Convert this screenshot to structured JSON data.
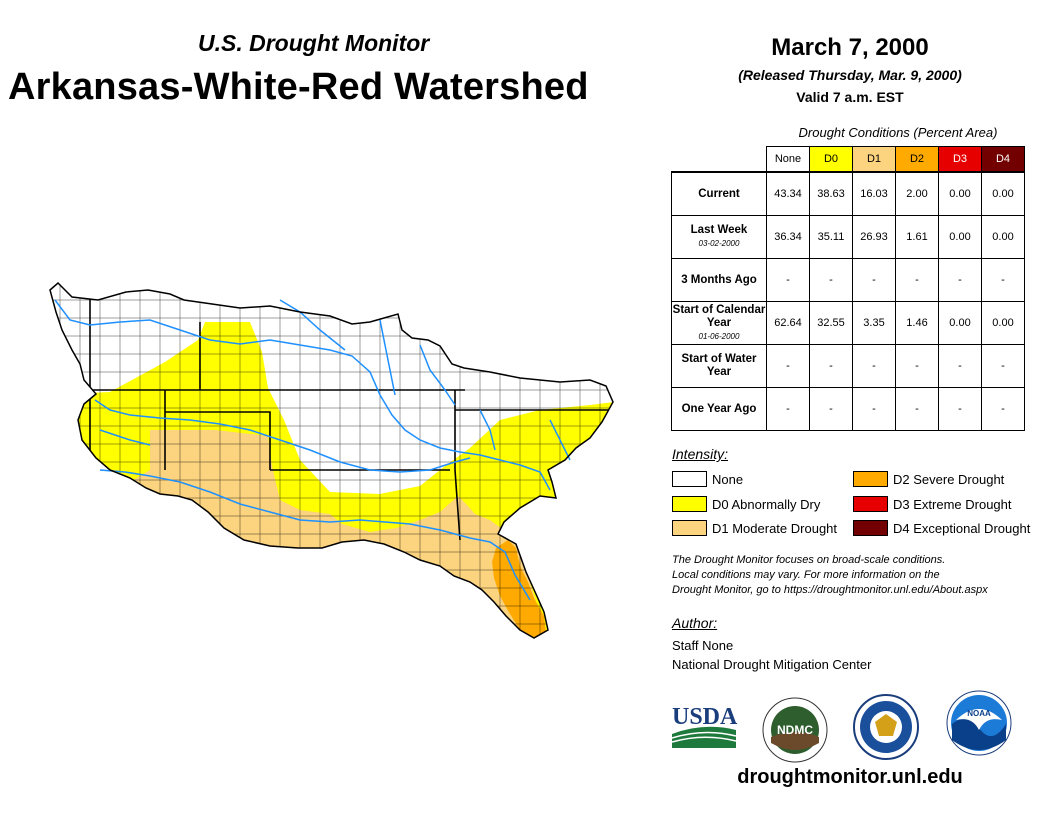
{
  "header": {
    "subtitle": "U.S. Drought Monitor",
    "title": "Arkansas-White-Red Watershed",
    "date": "March 7, 2000",
    "released": "(Released Thursday, Mar. 9, 2000)",
    "valid": "Valid 7 a.m. EST"
  },
  "table": {
    "caption": "Drought Conditions (Percent Area)",
    "columns": [
      "None",
      "D0",
      "D1",
      "D2",
      "D3",
      "D4"
    ],
    "column_colors": [
      "#ffffff",
      "#ffff00",
      "#fcd37f",
      "#ffaa00",
      "#e60000",
      "#730000"
    ],
    "column_text_colors": [
      "#000000",
      "#000000",
      "#000000",
      "#000000",
      "#ffffff",
      "#ffffff"
    ],
    "rows": [
      {
        "label": "Current",
        "sub": "",
        "values": [
          "43.34",
          "38.63",
          "16.03",
          "2.00",
          "0.00",
          "0.00"
        ]
      },
      {
        "label": "Last Week",
        "sub": "03-02-2000",
        "values": [
          "36.34",
          "35.11",
          "26.93",
          "1.61",
          "0.00",
          "0.00"
        ]
      },
      {
        "label": "3 Months Ago",
        "sub": "",
        "values": [
          "-",
          "-",
          "-",
          "-",
          "-",
          "-"
        ]
      },
      {
        "label": "Start of Calendar Year",
        "sub": "01-06-2000",
        "values": [
          "62.64",
          "32.55",
          "3.35",
          "1.46",
          "0.00",
          "0.00"
        ]
      },
      {
        "label": "Start of Water Year",
        "sub": "",
        "values": [
          "-",
          "-",
          "-",
          "-",
          "-",
          "-"
        ]
      },
      {
        "label": "One Year Ago",
        "sub": "",
        "values": [
          "-",
          "-",
          "-",
          "-",
          "-",
          "-"
        ]
      }
    ]
  },
  "legend": {
    "title": "Intensity:",
    "items": [
      {
        "label": "None",
        "color": "#ffffff"
      },
      {
        "label": "D0 Abnormally Dry",
        "color": "#ffff00"
      },
      {
        "label": "D1 Moderate Drought",
        "color": "#fcd37f"
      },
      {
        "label": "D2 Severe Drought",
        "color": "#ffaa00"
      },
      {
        "label": "D3 Extreme Drought",
        "color": "#e60000"
      },
      {
        "label": "D4 Exceptional Drought",
        "color": "#730000"
      }
    ]
  },
  "note": {
    "line1": "The Drought Monitor focuses on broad-scale conditions.",
    "line2": "Local conditions may vary. For more information on the",
    "line3": "Drought Monitor, go to https://droughtmonitor.unl.edu/About.aspx"
  },
  "author": {
    "title": "Author:",
    "name": "Staff None",
    "org": "National Drought Mitigation Center"
  },
  "logos": {
    "usda": "USDA",
    "ndmc": "NDMC",
    "noaa": "NOAA"
  },
  "website": "droughtmonitor.unl.edu",
  "map": {
    "colors": {
      "none": "#ffffff",
      "d0": "#ffff00",
      "d1": "#fcd37f",
      "d2": "#ffaa00",
      "water": "#1e90ff",
      "outline": "#000000"
    }
  }
}
